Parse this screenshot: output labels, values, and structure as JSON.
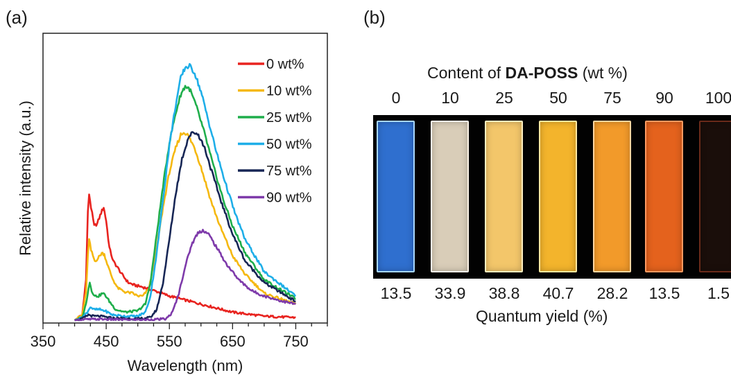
{
  "panel_a_label": "(a)",
  "panel_b_label": "(b)",
  "chart_data": {
    "type": "line",
    "xlabel": "Wavelength (nm)",
    "ylabel": "Relative intensity (a.u.)",
    "xlim": [
      350,
      800
    ],
    "ylim": [
      0,
      1.0
    ],
    "x_ticks": [
      350,
      450,
      550,
      650,
      750
    ],
    "y_ticks_shown": false,
    "grid": false,
    "legend_position": "top-right",
    "series": [
      {
        "name": "0 wt%",
        "color": "#e8231f",
        "points": [
          [
            400,
            0.0
          ],
          [
            412,
            0.02
          ],
          [
            418,
            0.15
          ],
          [
            421,
            0.4
          ],
          [
            423,
            0.47
          ],
          [
            426,
            0.42
          ],
          [
            431,
            0.35
          ],
          [
            436,
            0.36
          ],
          [
            442,
            0.4
          ],
          [
            446,
            0.42
          ],
          [
            450,
            0.37
          ],
          [
            455,
            0.27
          ],
          [
            461,
            0.22
          ],
          [
            467,
            0.2
          ],
          [
            475,
            0.17
          ],
          [
            485,
            0.14
          ],
          [
            495,
            0.13
          ],
          [
            505,
            0.125
          ],
          [
            520,
            0.115
          ],
          [
            550,
            0.09
          ],
          [
            600,
            0.06
          ],
          [
            650,
            0.03
          ],
          [
            700,
            0.015
          ],
          [
            750,
            0.01
          ]
        ]
      },
      {
        "name": "10 wt%",
        "color": "#f5b80f",
        "points": [
          [
            400,
            0.0
          ],
          [
            412,
            0.02
          ],
          [
            418,
            0.1
          ],
          [
            421,
            0.24
          ],
          [
            423,
            0.3
          ],
          [
            426,
            0.26
          ],
          [
            432,
            0.22
          ],
          [
            437,
            0.23
          ],
          [
            443,
            0.25
          ],
          [
            447,
            0.245
          ],
          [
            453,
            0.2
          ],
          [
            460,
            0.155
          ],
          [
            468,
            0.12
          ],
          [
            480,
            0.105
          ],
          [
            492,
            0.1
          ],
          [
            500,
            0.09
          ],
          [
            508,
            0.09
          ],
          [
            518,
            0.12
          ],
          [
            530,
            0.27
          ],
          [
            540,
            0.42
          ],
          [
            550,
            0.55
          ],
          [
            560,
            0.64
          ],
          [
            568,
            0.69
          ],
          [
            574,
            0.7
          ],
          [
            580,
            0.685
          ],
          [
            590,
            0.64
          ],
          [
            600,
            0.57
          ],
          [
            615,
            0.45
          ],
          [
            630,
            0.35
          ],
          [
            650,
            0.24
          ],
          [
            670,
            0.17
          ],
          [
            700,
            0.1
          ],
          [
            750,
            0.06
          ]
        ]
      },
      {
        "name": "25 wt%",
        "color": "#1fae4b",
        "points": [
          [
            400,
            0.0
          ],
          [
            412,
            0.01
          ],
          [
            418,
            0.06
          ],
          [
            422,
            0.12
          ],
          [
            424,
            0.14
          ],
          [
            427,
            0.11
          ],
          [
            432,
            0.09
          ],
          [
            438,
            0.09
          ],
          [
            444,
            0.1
          ],
          [
            448,
            0.095
          ],
          [
            455,
            0.07
          ],
          [
            465,
            0.04
          ],
          [
            480,
            0.03
          ],
          [
            500,
            0.035
          ],
          [
            512,
            0.06
          ],
          [
            520,
            0.14
          ],
          [
            530,
            0.32
          ],
          [
            540,
            0.5
          ],
          [
            550,
            0.66
          ],
          [
            560,
            0.77
          ],
          [
            568,
            0.84
          ],
          [
            575,
            0.87
          ],
          [
            582,
            0.86
          ],
          [
            592,
            0.8
          ],
          [
            605,
            0.7
          ],
          [
            620,
            0.57
          ],
          [
            635,
            0.45
          ],
          [
            650,
            0.35
          ],
          [
            670,
            0.25
          ],
          [
            700,
            0.15
          ],
          [
            750,
            0.08
          ]
        ]
      },
      {
        "name": "50 wt%",
        "color": "#1eaee8",
        "points": [
          [
            400,
            0.0
          ],
          [
            412,
            0.01
          ],
          [
            420,
            0.03
          ],
          [
            425,
            0.05
          ],
          [
            430,
            0.04
          ],
          [
            440,
            0.04
          ],
          [
            448,
            0.035
          ],
          [
            460,
            0.02
          ],
          [
            480,
            0.015
          ],
          [
            500,
            0.015
          ],
          [
            512,
            0.03
          ],
          [
            520,
            0.09
          ],
          [
            530,
            0.25
          ],
          [
            540,
            0.45
          ],
          [
            550,
            0.65
          ],
          [
            560,
            0.8
          ],
          [
            568,
            0.9
          ],
          [
            575,
            0.94
          ],
          [
            582,
            0.945
          ],
          [
            590,
            0.92
          ],
          [
            600,
            0.85
          ],
          [
            612,
            0.74
          ],
          [
            625,
            0.62
          ],
          [
            640,
            0.5
          ],
          [
            655,
            0.39
          ],
          [
            670,
            0.3
          ],
          [
            700,
            0.18
          ],
          [
            750,
            0.09
          ]
        ]
      },
      {
        "name": "75 wt%",
        "color": "#172655",
        "points": [
          [
            400,
            0.0
          ],
          [
            412,
            0.005
          ],
          [
            422,
            0.02
          ],
          [
            430,
            0.015
          ],
          [
            440,
            0.015
          ],
          [
            460,
            0.008
          ],
          [
            500,
            0.005
          ],
          [
            520,
            0.01
          ],
          [
            530,
            0.04
          ],
          [
            540,
            0.14
          ],
          [
            550,
            0.3
          ],
          [
            560,
            0.47
          ],
          [
            570,
            0.6
          ],
          [
            580,
            0.68
          ],
          [
            588,
            0.7
          ],
          [
            596,
            0.69
          ],
          [
            606,
            0.64
          ],
          [
            620,
            0.53
          ],
          [
            635,
            0.42
          ],
          [
            650,
            0.32
          ],
          [
            670,
            0.22
          ],
          [
            700,
            0.14
          ],
          [
            750,
            0.07
          ]
        ]
      },
      {
        "name": "90 wt%",
        "color": "#7e3aaa",
        "points": [
          [
            400,
            0.0
          ],
          [
            420,
            0.003
          ],
          [
            440,
            0.004
          ],
          [
            480,
            0.002
          ],
          [
            520,
            0.002
          ],
          [
            545,
            0.005
          ],
          [
            555,
            0.03
          ],
          [
            565,
            0.1
          ],
          [
            575,
            0.2
          ],
          [
            585,
            0.28
          ],
          [
            595,
            0.325
          ],
          [
            603,
            0.335
          ],
          [
            612,
            0.32
          ],
          [
            625,
            0.27
          ],
          [
            640,
            0.21
          ],
          [
            660,
            0.15
          ],
          [
            680,
            0.11
          ],
          [
            700,
            0.09
          ],
          [
            730,
            0.07
          ],
          [
            750,
            0.06
          ]
        ]
      }
    ]
  },
  "panel_b": {
    "title_prefix": "Content of ",
    "title_bold": "DA-POSS",
    "title_suffix": " (wt %)",
    "contents": [
      "0",
      "10",
      "25",
      "50",
      "75",
      "90",
      "100"
    ],
    "quantum_yields": [
      "13.5",
      "33.9",
      "38.8",
      "40.7",
      "28.2",
      "13.5",
      "1.5"
    ],
    "qy_label": "Quantum yield (%)",
    "film_colors": [
      "#2f6fcf",
      "#d9cdb8",
      "#f3c66a",
      "#f3b42c",
      "#f29a2a",
      "#e4621d",
      "#1a0e0a"
    ],
    "film_border_colors": [
      "#a9d8ff",
      "#fff6ea",
      "#fff0c0",
      "#ffe9a0",
      "#ffd7a0",
      "#ff9a60",
      "#6a2a1a"
    ]
  }
}
